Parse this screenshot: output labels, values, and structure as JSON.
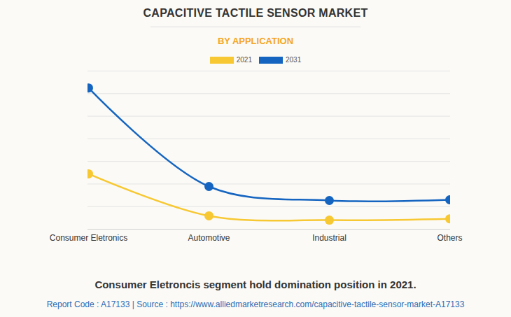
{
  "chart_data": {
    "type": "line",
    "title": "CAPACITIVE TACTILE SENSOR MARKET",
    "subtitle": "BY APPLICATION",
    "caption": "Consumer Eletroncis segment hold domination position in 2021.",
    "source": "Report Code : A17133  |  Source : https://www.alliedmarketresearch.com/capacitive-tactile-sensor-market-A17133",
    "categories": [
      "Consumer Eletronics",
      "Automotive",
      "Industrial",
      "Others"
    ],
    "series": [
      {
        "name": "2021",
        "color": "#f7c831",
        "values": [
          2.45,
          0.59,
          0.4,
          0.46
        ]
      },
      {
        "name": "2031",
        "color": "#1565c0",
        "values": [
          6.25,
          1.89,
          1.27,
          1.3
        ]
      }
    ],
    "ylim": [
      0,
      7
    ],
    "yticks": [
      0,
      1,
      2,
      3,
      4,
      5,
      6,
      7
    ],
    "grid": true,
    "legend": "top",
    "tick_labels": "x",
    "marker": "circle",
    "line_style": "smooth"
  }
}
